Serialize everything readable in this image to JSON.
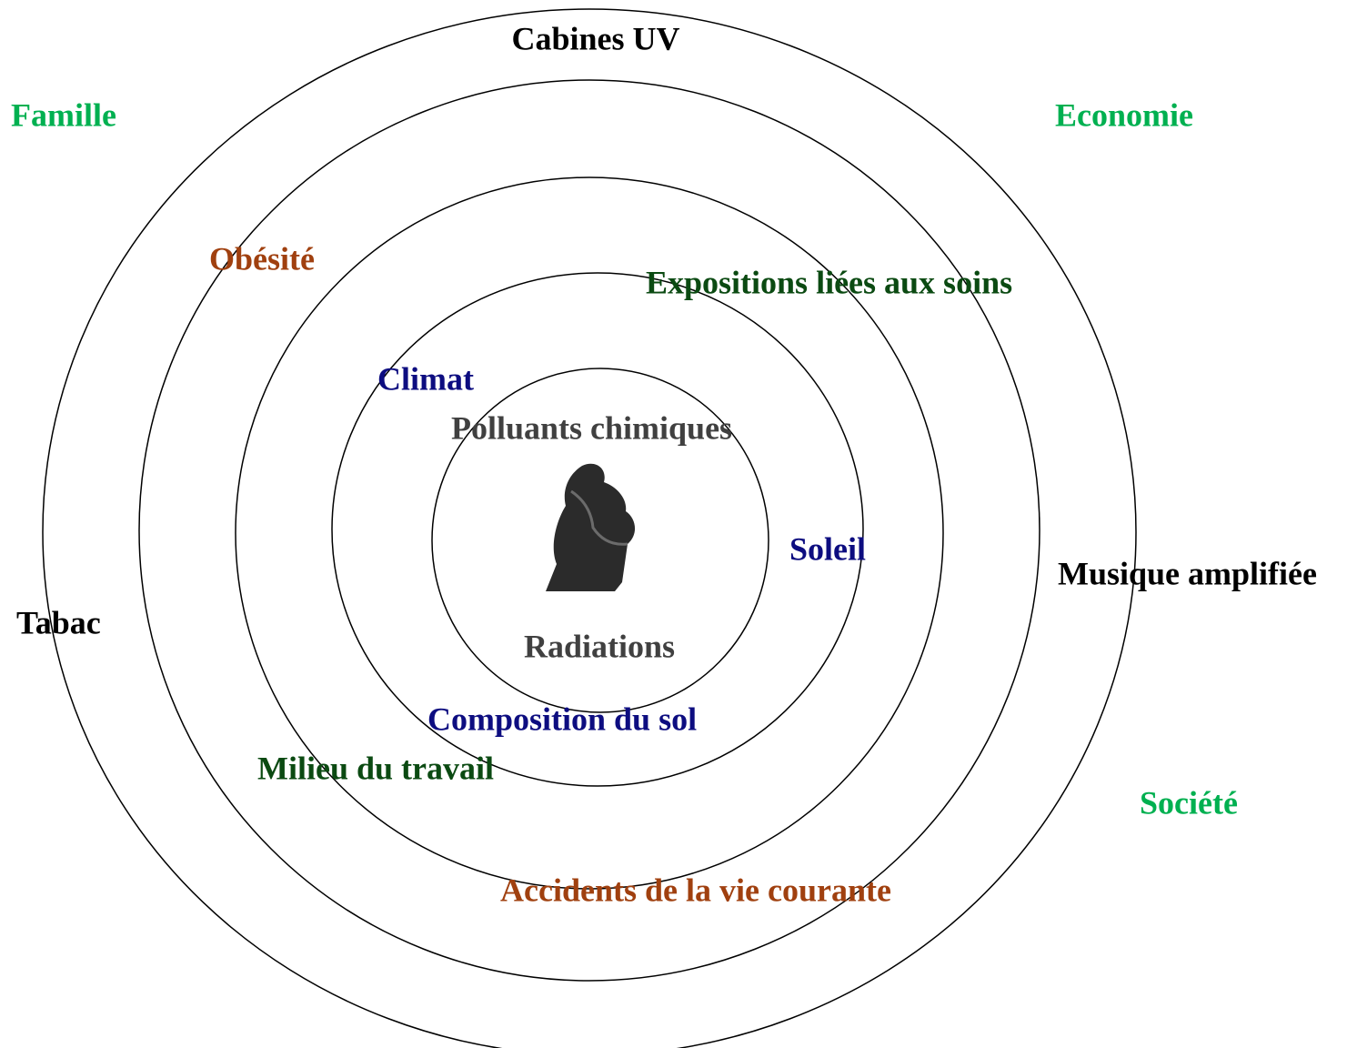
{
  "labels": {
    "cabines_uv": "Cabines UV",
    "famille": "Famille",
    "economie": "Economie",
    "obesite": "Obésité",
    "expositions": "Expositions liées aux soins",
    "climat": "Climat",
    "polluants": "Polluants chimiques",
    "soleil": "Soleil",
    "musique": "Musique amplifiée",
    "tabac": "Tabac",
    "radiations": "Radiations",
    "composition": "Composition du sol",
    "milieu": "Milieu du travail",
    "societe": "Société",
    "accidents": "Accidents de la vie courante"
  }
}
